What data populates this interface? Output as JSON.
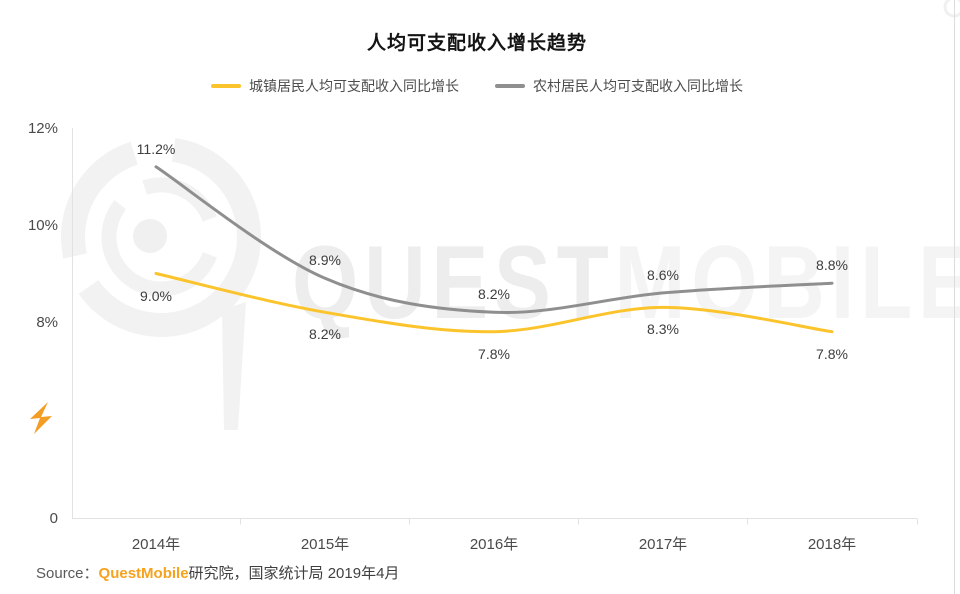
{
  "page": {
    "title": "人均可支配收入增长趋势",
    "source": {
      "prefix": "Source：",
      "brand": "QuestMobile",
      "suffix": "研究院，国家统计局 2019年4月"
    }
  },
  "watermark": {
    "left": "QUEST",
    "right": "MOBILE"
  },
  "colors": {
    "urban_line": "#FCC42C",
    "rural_line": "#8F8F8F",
    "brand_orange": "#F7A21F",
    "axis_line": "#E2E2E2"
  },
  "chart_data": {
    "type": "line",
    "smooth": true,
    "grid": false,
    "legend_position": "top",
    "categories": [
      "2014年",
      "2015年",
      "2016年",
      "2017年",
      "2018年"
    ],
    "series": [
      {
        "name": "城镇居民人均可支配收入同比增长",
        "color": "#FCC42C",
        "values": [
          9.0,
          8.2,
          7.8,
          8.3,
          7.8
        ],
        "labels": [
          "9.0%",
          "8.2%",
          "7.8%",
          "8.3%",
          "7.8%"
        ],
        "label_side": "below"
      },
      {
        "name": "农村居民人均可支配收入同比增长",
        "color": "#8F8F8F",
        "values": [
          11.2,
          8.9,
          8.2,
          8.6,
          8.8
        ],
        "labels": [
          "11.2%",
          "8.9%",
          "8.2%",
          "8.6%",
          "8.8%"
        ],
        "label_side": "above"
      }
    ],
    "y_ticks": [
      "12%",
      "10%",
      "8%",
      "0"
    ],
    "ylim_visible": [
      0,
      12
    ],
    "y_axis_note": "axis truncated between 0 and 8%"
  }
}
